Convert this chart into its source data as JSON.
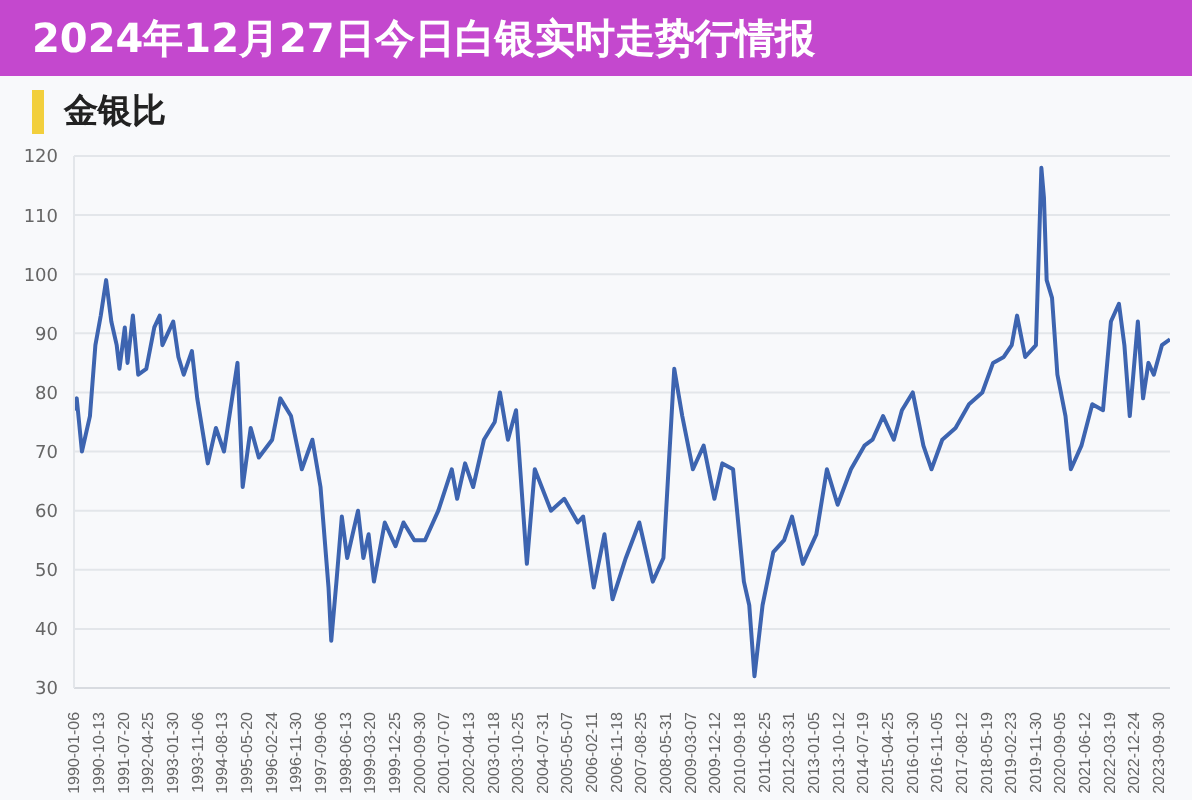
{
  "chart_data": {
    "type": "line",
    "title": "金银比",
    "annotations": [
      "2024年12月27日今日白银实时走势行情报"
    ],
    "x": [
      "1990-01",
      "1990-02",
      "1990-04",
      "1990-07",
      "1990-09",
      "1990-11",
      "1991-01",
      "1991-03",
      "1991-05",
      "1991-06",
      "1991-08",
      "1991-09",
      "1991-11",
      "1992-01",
      "1992-04",
      "1992-07",
      "1992-09",
      "1992-10",
      "1992-12",
      "1993-02",
      "1993-04",
      "1993-06",
      "1993-09",
      "1993-11",
      "1994-03",
      "1994-06",
      "1994-09",
      "1995-02",
      "1995-04",
      "1995-07",
      "1995-10",
      "1996-03",
      "1996-06",
      "1996-10",
      "1997-02",
      "1997-06",
      "1997-09",
      "1997-12",
      "1998-01",
      "1998-03",
      "1998-05",
      "1998-07",
      "1998-11",
      "1999-01",
      "1999-03",
      "1999-05",
      "1999-09",
      "2000-01",
      "2000-04",
      "2000-08",
      "2000-12",
      "2001-05",
      "2001-10",
      "2001-12",
      "2002-03",
      "2002-06",
      "2002-10",
      "2003-02",
      "2003-04",
      "2003-07",
      "2003-10",
      "2004-02",
      "2004-05",
      "2004-11",
      "2005-04",
      "2005-09",
      "2005-11",
      "2006-03",
      "2006-07",
      "2006-10",
      "2007-03",
      "2007-08",
      "2008-01",
      "2008-05",
      "2008-09",
      "2008-12",
      "2009-04",
      "2009-08",
      "2009-12",
      "2010-03",
      "2010-07",
      "2010-11",
      "2011-01",
      "2011-03",
      "2011-06",
      "2011-10",
      "2012-02",
      "2012-05",
      "2012-09",
      "2013-02",
      "2013-06",
      "2013-10",
      "2014-03",
      "2014-08",
      "2014-11",
      "2015-03",
      "2015-07",
      "2015-10",
      "2016-02",
      "2016-06",
      "2016-09",
      "2017-01",
      "2017-06",
      "2017-11",
      "2018-04",
      "2018-08",
      "2018-12",
      "2019-03",
      "2019-05",
      "2019-08",
      "2019-12",
      "2020-02",
      "2020-03",
      "2020-04",
      "2020-06",
      "2020-08",
      "2020-11",
      "2021-01",
      "2021-05",
      "2021-09",
      "2022-01",
      "2022-04",
      "2022-07",
      "2022-09",
      "2022-11",
      "2023-02",
      "2023-04",
      "2023-06",
      "2023-08",
      "2023-11",
      "2024-02"
    ],
    "series": [
      {
        "color": "#3d64b0",
        "values": [
          77,
          79,
          70,
          76,
          88,
          93,
          99,
          92,
          88,
          84,
          91,
          85,
          93,
          83,
          84,
          91,
          93,
          88,
          90,
          92,
          86,
          83,
          87,
          79,
          68,
          74,
          70,
          85,
          64,
          74,
          69,
          72,
          79,
          76,
          67,
          72,
          64,
          47,
          38,
          48,
          59,
          52,
          60,
          52,
          56,
          48,
          58,
          54,
          58,
          55,
          55,
          60,
          67,
          62,
          68,
          64,
          72,
          75,
          80,
          72,
          77,
          51,
          67,
          60,
          62,
          58,
          59,
          47,
          56,
          45,
          52,
          58,
          48,
          52,
          84,
          76,
          67,
          71,
          62,
          68,
          67,
          48,
          44,
          32,
          44,
          53,
          55,
          59,
          51,
          56,
          67,
          61,
          67,
          71,
          72,
          76,
          72,
          77,
          80,
          71,
          67,
          72,
          74,
          78,
          80,
          85,
          86,
          88,
          93,
          86,
          88,
          118,
          113,
          99,
          96,
          83,
          76,
          67,
          71,
          78,
          77,
          92,
          95,
          88,
          76,
          92,
          79,
          85,
          83,
          88,
          89
        ]
      }
    ],
    "xlim": [
      "1990-01",
      "2024-02"
    ],
    "xticks": [
      "1990-01-06",
      "1990-10-13",
      "1991-07-20",
      "1992-04-25",
      "1993-01-30",
      "1993-11-06",
      "1994-08-13",
      "1995-05-20",
      "1996-02-24",
      "1996-11-30",
      "1997-09-06",
      "1998-06-13",
      "1999-03-20",
      "1999-12-25",
      "2000-09-30",
      "2001-07-07",
      "2002-04-13",
      "2003-01-18",
      "2003-10-25",
      "2004-07-31",
      "2005-05-07",
      "2006-02-11",
      "2006-11-18",
      "2007-08-25",
      "2008-05-31",
      "2009-03-07",
      "2009-12-12",
      "2010-09-18",
      "2011-06-25",
      "2012-03-31",
      "2013-01-05",
      "2013-10-12",
      "2014-07-19",
      "2015-04-25",
      "2016-01-30",
      "2016-11-05",
      "2017-08-12",
      "2018-05-19",
      "2019-02-23",
      "2019-11-30",
      "2020-09-05",
      "2021-06-12",
      "2022-03-19",
      "2022-12-24",
      "2023-09-30"
    ],
    "ylim": [
      30,
      120
    ],
    "yticks": [
      30,
      40,
      50,
      60,
      70,
      80,
      90,
      100,
      110,
      120
    ],
    "grid": "y",
    "legend": false,
    "marker": "none",
    "line_style": "solid"
  }
}
